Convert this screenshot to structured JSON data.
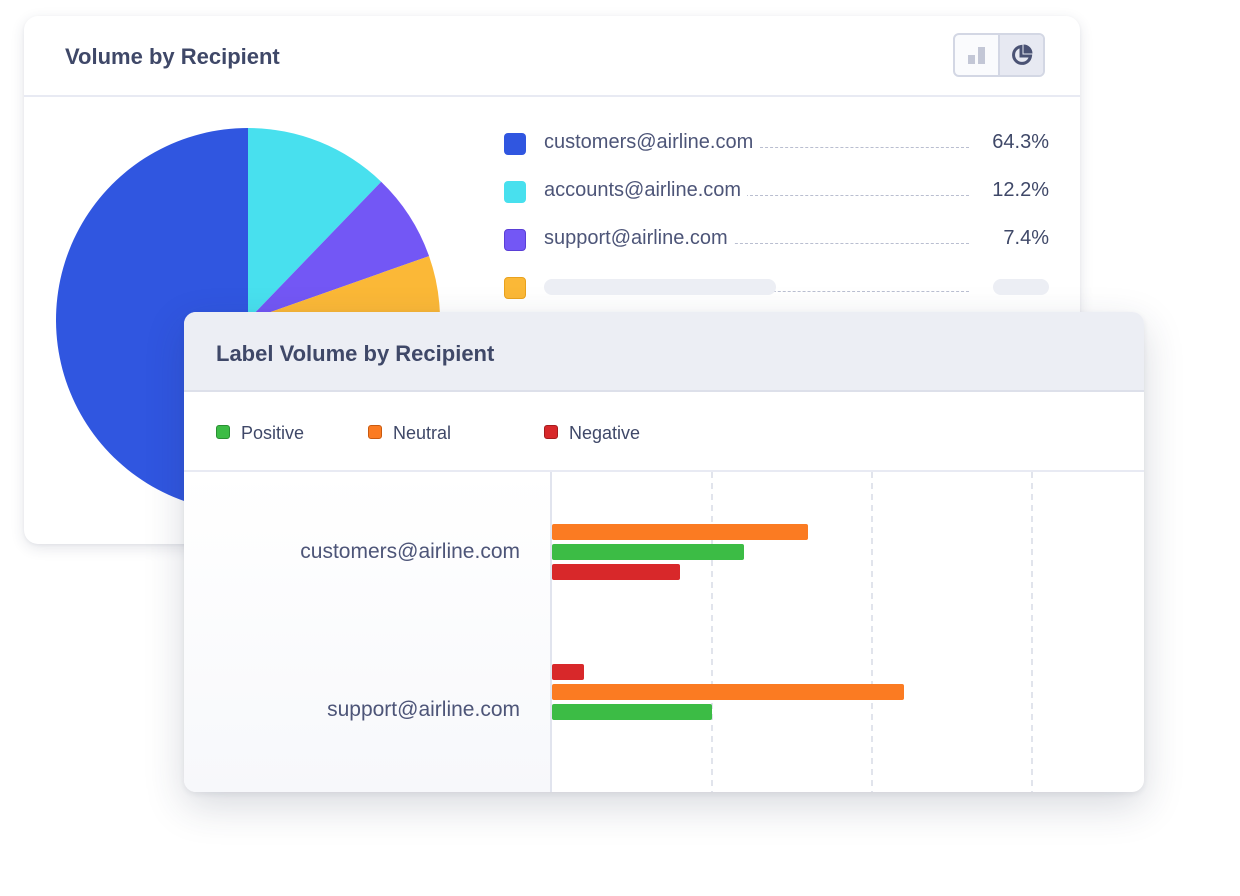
{
  "volume_card": {
    "title": "Volume by Recipient",
    "toggle": {
      "options": [
        "bar-chart-icon",
        "pie-chart-icon"
      ],
      "active": "pie-chart-icon"
    },
    "legend": [
      {
        "name": "customers@airline.com",
        "value": "64.3%",
        "color": "#3056e0"
      },
      {
        "name": "accounts@airline.com",
        "value": "12.2%",
        "color": "#48e0ee"
      },
      {
        "name": "support@airline.com",
        "value": "7.4%",
        "color": "#7357f5"
      },
      {
        "name": "",
        "value": "",
        "color": "#fbb837"
      }
    ]
  },
  "label_card": {
    "title": "Label Volume by Recipient",
    "legend": [
      {
        "name": "Positive",
        "color": "#3cbc45"
      },
      {
        "name": "Neutral",
        "color": "#fb7b22"
      },
      {
        "name": "Negative",
        "color": "#d8282a"
      }
    ]
  },
  "chart_data": [
    {
      "type": "pie",
      "title": "Volume by Recipient",
      "labels": [
        "customers@airline.com",
        "accounts@airline.com",
        "support@airline.com",
        ""
      ],
      "values": [
        64.3,
        12.2,
        7.4,
        16.1
      ],
      "colors": [
        "#3056e0",
        "#48e0ee",
        "#7357f5",
        "#fbb837"
      ]
    },
    {
      "type": "bar",
      "orientation": "horizontal",
      "title": "Label Volume by Recipient",
      "categories": [
        "customers@airline.com",
        "support@airline.com"
      ],
      "xlim": [
        0,
        4
      ],
      "grid": true,
      "legend": "top",
      "series": [
        {
          "name": "Positive",
          "color": "#3cbc45",
          "values": [
            1.2,
            1.0
          ]
        },
        {
          "name": "Neutral",
          "color": "#fb7b22",
          "values": [
            1.6,
            2.2
          ]
        },
        {
          "name": "Negative",
          "color": "#d8282a",
          "values": [
            0.8,
            0.2
          ]
        }
      ],
      "bar_order": [
        [
          "Neutral",
          "Positive",
          "Negative"
        ],
        [
          "Negative",
          "Neutral",
          "Positive"
        ]
      ]
    }
  ]
}
